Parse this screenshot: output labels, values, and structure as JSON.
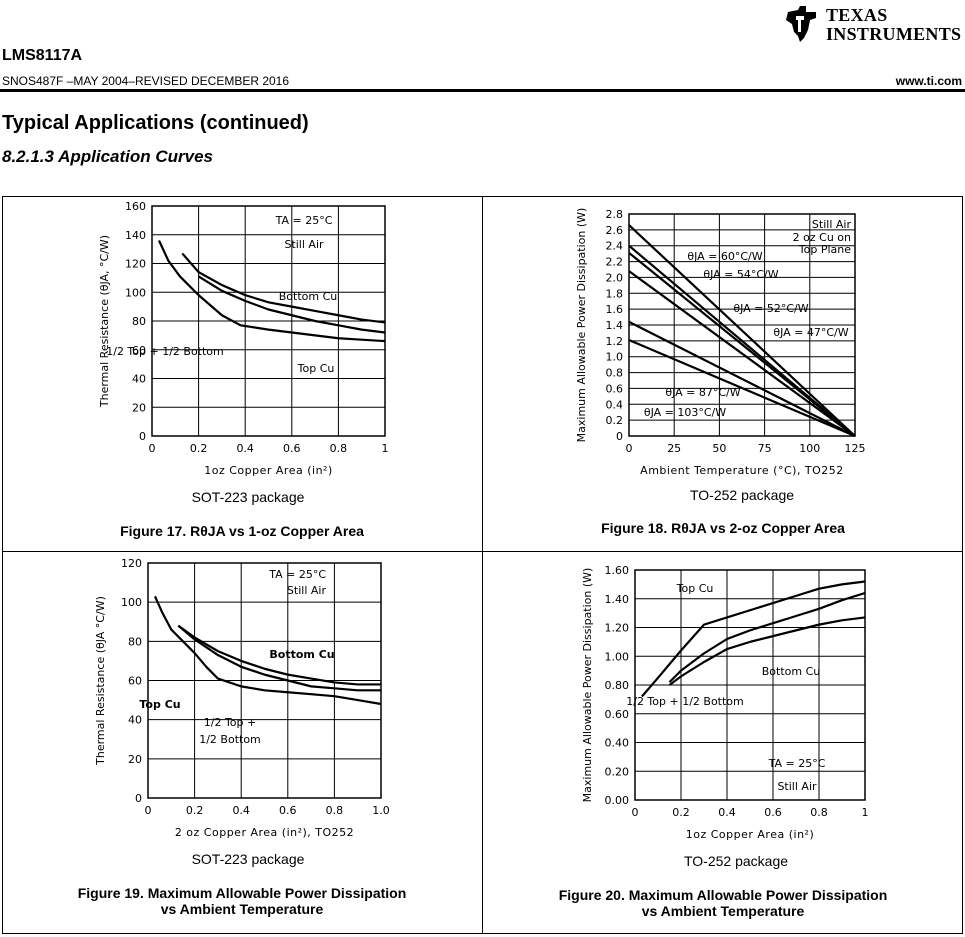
{
  "header": {
    "part_number": "LMS8117A",
    "doc_id": "SNOS487F –MAY 2004–REVISED DECEMBER 2016",
    "url": "www.ti.com",
    "logo_line1": "TEXAS",
    "logo_line2": "INSTRUMENTS"
  },
  "section_title": "Typical Applications (continued)",
  "subsection_title": "8.2.1.3   Application Curves",
  "figures": [
    {
      "caption": "Figure 17. RθJA vs 1-oz Copper Area",
      "package": "SOT-223 package"
    },
    {
      "caption": "Figure 18. RθJA vs 2-oz Copper Area",
      "package": "TO-252 package"
    },
    {
      "caption_line1": "Figure 19. Maximum Allowable Power Dissipation",
      "caption_line2": "vs Ambient Temperature",
      "package": "SOT-223 package"
    },
    {
      "caption_line1": "Figure 20. Maximum Allowable Power Dissipation",
      "caption_line2": "vs Ambient Temperature",
      "package": "TO-252 package"
    }
  ],
  "chart_data": [
    {
      "type": "line",
      "xlabel": "1oz Copper Area (in²)",
      "ylabel": "Thermal Resistance (θJA, °C/W)",
      "xlim": [
        0,
        1
      ],
      "ylim": [
        0,
        160
      ],
      "xticks": [
        "0",
        "0.2",
        "0.4",
        "0.6",
        "0.8",
        "1"
      ],
      "yticks": [
        "0",
        "20",
        "40",
        "60",
        "80",
        "100",
        "120",
        "140",
        "160"
      ],
      "grid": true,
      "annotations": [
        "TA = 25°C",
        "Still Air",
        "Bottom Cu",
        "1/2 Top + 1/2 Bottom",
        "Top Cu"
      ],
      "series": [
        {
          "name": "Bottom Cu",
          "x": [
            0.13,
            0.2,
            0.3,
            0.4,
            0.5,
            0.6,
            0.7,
            0.8,
            0.9,
            1.0
          ],
          "y": [
            127,
            114,
            105,
            98,
            93,
            90,
            87,
            84,
            81,
            79
          ]
        },
        {
          "name": "1/2 Top + 1/2 Bottom",
          "x": [
            0.2,
            0.3,
            0.4,
            0.5,
            0.6,
            0.7,
            0.8,
            0.9,
            1.0
          ],
          "y": [
            111,
            101,
            94,
            88,
            84,
            80,
            77,
            74,
            72
          ]
        },
        {
          "name": "Top Cu",
          "x": [
            0.03,
            0.07,
            0.12,
            0.2,
            0.3,
            0.38,
            0.5,
            0.6,
            0.7,
            0.8,
            0.9,
            1.0
          ],
          "y": [
            136,
            122,
            111,
            98,
            84,
            77,
            74,
            72,
            70,
            68,
            67,
            66
          ]
        }
      ]
    },
    {
      "type": "line",
      "xlabel": "Ambient Temperature (°C), TO252",
      "ylabel": "Maximum Allowable Power Dissipation (W)",
      "xlim": [
        0,
        125
      ],
      "ylim": [
        0,
        2.8
      ],
      "xticks": [
        "0",
        "25",
        "50",
        "75",
        "100",
        "125"
      ],
      "yticks": [
        "0",
        "0.2",
        "0.4",
        "0.6",
        "0.8",
        "1.0",
        "1.2",
        "1.4",
        "1.6",
        "1.8",
        "2.0",
        "2.2",
        "2.4",
        "2.6",
        "2.8"
      ],
      "grid": true,
      "annotations": [
        "Still Air",
        "2 oz Cu on",
        "Top Plane"
      ],
      "series": [
        {
          "name": "θJA = 47°C/W",
          "x": [
            0,
            125
          ],
          "y": [
            2.66,
            0
          ]
        },
        {
          "name": "θJA = 52°C/W",
          "x": [
            0,
            125
          ],
          "y": [
            2.4,
            0
          ]
        },
        {
          "name": "θJA = 54°C/W",
          "x": [
            0,
            125
          ],
          "y": [
            2.31,
            0
          ]
        },
        {
          "name": "θJA = 60°C/W",
          "x": [
            0,
            125
          ],
          "y": [
            2.08,
            0
          ]
        },
        {
          "name": "θJA = 87°C/W",
          "x": [
            0,
            125
          ],
          "y": [
            1.44,
            0
          ]
        },
        {
          "name": "θJA = 103°C/W",
          "x": [
            0,
            125
          ],
          "y": [
            1.21,
            0
          ]
        }
      ]
    },
    {
      "type": "line",
      "xlabel": "2 oz Copper Area (in²), TO252",
      "ylabel": "Thermal Resistance (θJA °C/W)",
      "xlim": [
        0,
        1.0
      ],
      "ylim": [
        0,
        120
      ],
      "xticks": [
        "0",
        "0.2",
        "0.4",
        "0.6",
        "0.8",
        "1.0"
      ],
      "yticks": [
        "0",
        "20",
        "40",
        "60",
        "80",
        "100",
        "120"
      ],
      "grid": true,
      "annotations": [
        "TA = 25°C",
        "Still Air",
        "Bottom Cu",
        "Top Cu",
        "1/2 Top +",
        "1/2 Bottom"
      ],
      "series": [
        {
          "name": "Top Cu",
          "x": [
            0.03,
            0.06,
            0.1,
            0.15,
            0.2,
            0.25,
            0.3,
            0.4,
            0.5,
            0.6,
            0.7,
            0.8,
            0.9,
            1.0
          ],
          "y": [
            103,
            95,
            86,
            80,
            74,
            67,
            61,
            57,
            55,
            54,
            53,
            52,
            50,
            48
          ]
        },
        {
          "name": "Bottom Cu",
          "x": [
            0.13,
            0.2,
            0.3,
            0.4,
            0.5,
            0.6,
            0.7,
            0.8,
            0.9,
            1.0
          ],
          "y": [
            88,
            82,
            75,
            70,
            66,
            63,
            61,
            59,
            58,
            58
          ]
        },
        {
          "name": "1/2 Top + 1/2 Bottom",
          "x": [
            0.13,
            0.2,
            0.3,
            0.4,
            0.5,
            0.6,
            0.7,
            0.8,
            0.9,
            1.0
          ],
          "y": [
            88,
            81,
            73,
            67,
            63,
            60,
            57,
            56,
            55,
            55
          ]
        }
      ]
    },
    {
      "type": "line",
      "xlabel": "1oz Copper Area (in²)",
      "ylabel": "Maximum Allowable Power Dissipation (W)",
      "xlim": [
        0,
        1
      ],
      "ylim": [
        0,
        1.6
      ],
      "xticks": [
        "0",
        "0.2",
        "0.4",
        "0.6",
        "0.8",
        "1"
      ],
      "yticks": [
        "0.00",
        "0.20",
        "0.40",
        "0.60",
        "0.80",
        "1.00",
        "1.20",
        "1.40",
        "1.60"
      ],
      "grid": true,
      "annotations": [
        "Top Cu",
        "Bottom Cu",
        "1/2 Top + 1/2 Bottom",
        "TA = 25°C",
        "Still Air"
      ],
      "series": [
        {
          "name": "Top Cu",
          "x": [
            0.03,
            0.1,
            0.2,
            0.3,
            0.4,
            0.5,
            0.6,
            0.7,
            0.8,
            0.9,
            1.0
          ],
          "y": [
            0.72,
            0.85,
            1.04,
            1.22,
            1.27,
            1.32,
            1.37,
            1.42,
            1.47,
            1.5,
            1.52
          ]
        },
        {
          "name": "1/2 Top + 1/2 Bottom",
          "x": [
            0.15,
            0.2,
            0.3,
            0.4,
            0.5,
            0.6,
            0.7,
            0.8,
            0.9,
            1.0
          ],
          "y": [
            0.82,
            0.9,
            1.02,
            1.12,
            1.18,
            1.23,
            1.28,
            1.33,
            1.39,
            1.44
          ]
        },
        {
          "name": "Bottom Cu",
          "x": [
            0.15,
            0.2,
            0.3,
            0.4,
            0.5,
            0.6,
            0.7,
            0.8,
            0.9,
            1.0
          ],
          "y": [
            0.8,
            0.86,
            0.96,
            1.05,
            1.1,
            1.14,
            1.18,
            1.22,
            1.25,
            1.27
          ]
        }
      ]
    }
  ]
}
